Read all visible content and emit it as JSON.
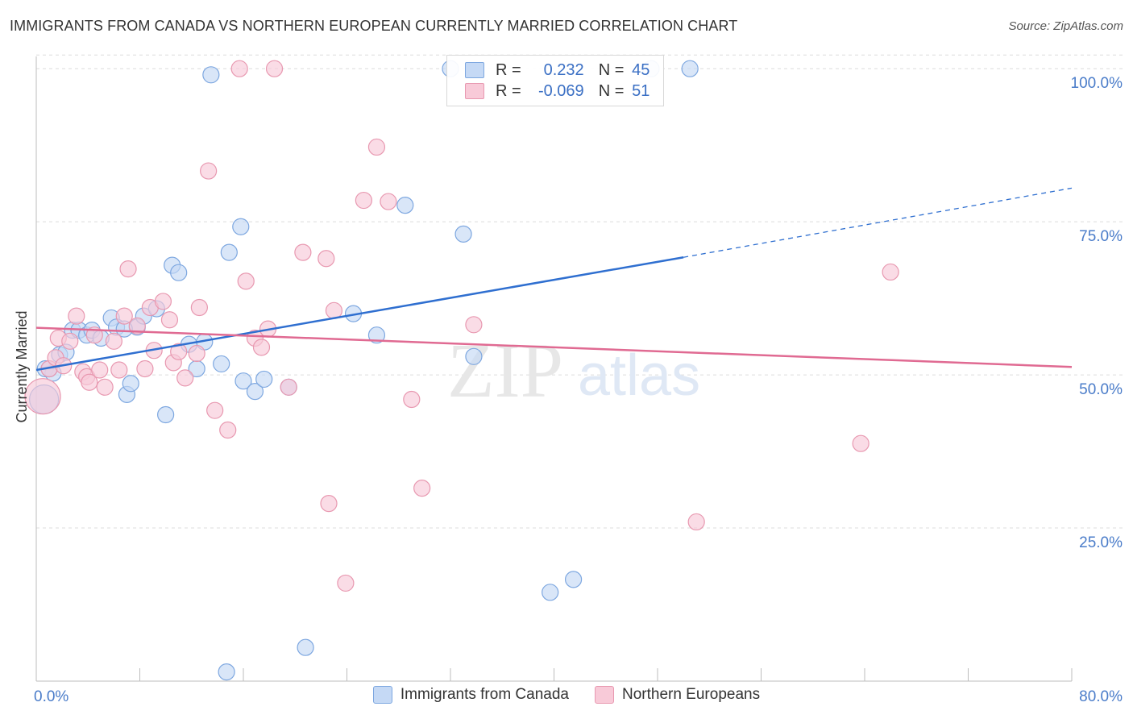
{
  "header": {
    "title": "IMMIGRANTS FROM CANADA VS NORTHERN EUROPEAN CURRENTLY MARRIED CORRELATION CHART",
    "source": "Source: ZipAtlas.com"
  },
  "legend_stats": {
    "r_label": "R =",
    "n_label": "N =",
    "series": [
      {
        "r": "0.232",
        "n": "45"
      },
      {
        "r": "-0.069",
        "n": "51"
      }
    ]
  },
  "watermark": {
    "zip": "ZIP",
    "atlas": "atlas"
  },
  "colors": {
    "canada_fill": "#c5d9f5",
    "canada_stroke": "#7da7e0",
    "canada_line": "#2f6fd0",
    "nordic_fill": "#f8cad8",
    "nordic_stroke": "#e898b0",
    "nordic_line": "#e06a92",
    "tick_label": "#4a7cc9",
    "grid": "#dcdcdc"
  },
  "chart_data": {
    "type": "scatter",
    "title": "IMMIGRANTS FROM CANADA VS NORTHERN EUROPEAN CURRENTLY MARRIED CORRELATION CHART",
    "xlabel": "",
    "ylabel": "Currently Married",
    "xlim": [
      0,
      80
    ],
    "ylim": [
      0,
      102
    ],
    "x_tick_labels": [
      "0.0%",
      "80.0%"
    ],
    "y_ticks": [
      25,
      50,
      75,
      100
    ],
    "y_tick_labels": [
      "25.0%",
      "50.0%",
      "75.0%",
      "100.0%"
    ],
    "grid": true,
    "legend_position": "bottom",
    "series": [
      {
        "name": "Immigrants from Canada",
        "r": 0.232,
        "n": 45,
        "trend": {
          "x0": 0,
          "y0": 50.8,
          "x1": 50.0,
          "y1": 69.2,
          "dashed_to_x": 80,
          "dashed_to_y": 80.5
        },
        "points": [
          [
            0.6,
            46.0
          ],
          [
            0.7,
            51.0
          ],
          [
            1.3,
            50.3
          ],
          [
            1.8,
            53.3
          ],
          [
            2.3,
            53.7
          ],
          [
            2.8,
            57.3
          ],
          [
            3.3,
            57.3
          ],
          [
            3.9,
            56.5
          ],
          [
            4.3,
            57.3
          ],
          [
            5.0,
            56.0
          ],
          [
            5.8,
            59.3
          ],
          [
            6.2,
            57.8
          ],
          [
            7.0,
            46.8
          ],
          [
            7.3,
            48.6
          ],
          [
            7.8,
            57.8
          ],
          [
            8.3,
            59.6
          ],
          [
            9.3,
            60.8
          ],
          [
            10.0,
            43.5
          ],
          [
            10.5,
            67.9
          ],
          [
            11.0,
            66.7
          ],
          [
            11.8,
            55.0
          ],
          [
            12.4,
            51.0
          ],
          [
            13.0,
            55.4
          ],
          [
            13.5,
            99.0
          ],
          [
            14.3,
            51.8
          ],
          [
            14.7,
            1.5
          ],
          [
            14.9,
            70.0
          ],
          [
            15.8,
            74.2
          ],
          [
            16.0,
            49.0
          ],
          [
            16.9,
            47.3
          ],
          [
            17.6,
            49.3
          ],
          [
            19.5,
            48.0
          ],
          [
            20.8,
            5.5
          ],
          [
            24.5,
            60.0
          ],
          [
            26.3,
            56.5
          ],
          [
            28.5,
            77.7
          ],
          [
            32.0,
            100.0
          ],
          [
            33.0,
            73.0
          ],
          [
            33.8,
            53.0
          ],
          [
            39.7,
            14.5
          ],
          [
            41.5,
            16.6
          ],
          [
            47.5,
            100.0
          ],
          [
            50.5,
            100.0
          ],
          [
            1.0,
            51.0
          ],
          [
            6.8,
            57.5
          ]
        ],
        "sizes": [
          18,
          10,
          10,
          10,
          10,
          10,
          10,
          10,
          10,
          10,
          10,
          10,
          10,
          10,
          10,
          10,
          10,
          10,
          10,
          10,
          10,
          10,
          10,
          10,
          10,
          10,
          10,
          10,
          10,
          10,
          10,
          10,
          10,
          10,
          10,
          10,
          10,
          10,
          10,
          10,
          10,
          10,
          10,
          10,
          10
        ]
      },
      {
        "name": "Northern Europeans",
        "r": -0.069,
        "n": 51,
        "trend": {
          "x0": 0,
          "y0": 57.7,
          "x1": 80,
          "y1": 51.3
        },
        "points": [
          [
            0.5,
            46.5
          ],
          [
            1.0,
            51.0
          ],
          [
            1.5,
            52.8
          ],
          [
            1.7,
            56.0
          ],
          [
            2.1,
            51.5
          ],
          [
            2.6,
            55.5
          ],
          [
            3.1,
            59.6
          ],
          [
            3.6,
            50.5
          ],
          [
            3.9,
            49.7
          ],
          [
            4.1,
            48.8
          ],
          [
            4.5,
            56.5
          ],
          [
            4.9,
            50.8
          ],
          [
            5.3,
            48.0
          ],
          [
            6.0,
            55.5
          ],
          [
            6.4,
            50.8
          ],
          [
            6.8,
            59.6
          ],
          [
            7.1,
            67.3
          ],
          [
            7.8,
            58.0
          ],
          [
            8.4,
            51.0
          ],
          [
            8.8,
            61.0
          ],
          [
            9.1,
            54.0
          ],
          [
            9.8,
            62.0
          ],
          [
            10.3,
            59.0
          ],
          [
            10.6,
            52.0
          ],
          [
            11.0,
            53.8
          ],
          [
            11.5,
            49.5
          ],
          [
            12.4,
            53.5
          ],
          [
            12.6,
            61.0
          ],
          [
            13.3,
            83.3
          ],
          [
            13.8,
            44.2
          ],
          [
            14.8,
            41.0
          ],
          [
            15.7,
            100.0
          ],
          [
            16.2,
            65.3
          ],
          [
            16.9,
            56.0
          ],
          [
            17.4,
            54.5
          ],
          [
            17.9,
            57.5
          ],
          [
            18.4,
            100.0
          ],
          [
            19.5,
            48.0
          ],
          [
            20.6,
            70.0
          ],
          [
            22.4,
            69.0
          ],
          [
            22.6,
            29.0
          ],
          [
            23.0,
            60.5
          ],
          [
            23.9,
            16.0
          ],
          [
            25.3,
            78.5
          ],
          [
            26.3,
            87.2
          ],
          [
            27.2,
            78.3
          ],
          [
            29.0,
            46.0
          ],
          [
            29.8,
            31.5
          ],
          [
            33.8,
            58.2
          ],
          [
            51.0,
            26.0
          ],
          [
            63.7,
            38.8
          ]
        ],
        "extra_points": [
          [
            66.0,
            66.8
          ]
        ],
        "sizes": [
          22,
          10,
          10,
          10,
          10,
          10,
          10,
          10,
          10,
          10,
          10,
          10,
          10,
          10,
          10,
          10,
          10,
          10,
          10,
          10,
          10,
          10,
          10,
          10,
          10,
          10,
          10,
          10,
          10,
          10,
          10,
          10,
          10,
          10,
          10,
          10,
          10,
          10,
          10,
          10,
          10,
          10,
          10,
          10,
          10,
          10,
          10,
          10,
          10,
          10,
          10
        ]
      }
    ]
  }
}
